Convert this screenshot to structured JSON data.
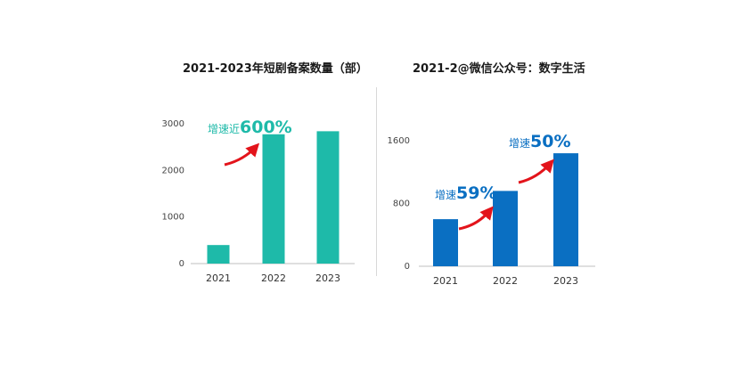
{
  "chart_data": [
    {
      "type": "bar",
      "title": "2021-2023年短剧备案数量（部）",
      "categories": [
        "2021",
        "2022",
        "2023"
      ],
      "values": [
        398,
        2775,
        2840
      ],
      "yticks": [
        0,
        1000,
        2000,
        3000
      ],
      "ylim": [
        0,
        3000
      ],
      "grid": false,
      "color": "#1ebaa9",
      "annotation": {
        "prefix": "增速近",
        "value": "600%",
        "color": "#1ebaa9"
      }
    },
    {
      "type": "bar",
      "title": "2021-2@微信公众号：数字生活",
      "categories": [
        "2021",
        "2022",
        "2023"
      ],
      "values": [
        600,
        960,
        1440
      ],
      "yticks": [
        0,
        800,
        1600
      ],
      "ylim": [
        0,
        1600
      ],
      "grid": false,
      "color": "#0a6fc2",
      "annotations": [
        {
          "prefix": "增速",
          "value": "59%",
          "color": "#0a6fc2"
        },
        {
          "prefix": "增速",
          "value": "50%",
          "color": "#0a6fc2"
        }
      ]
    }
  ]
}
